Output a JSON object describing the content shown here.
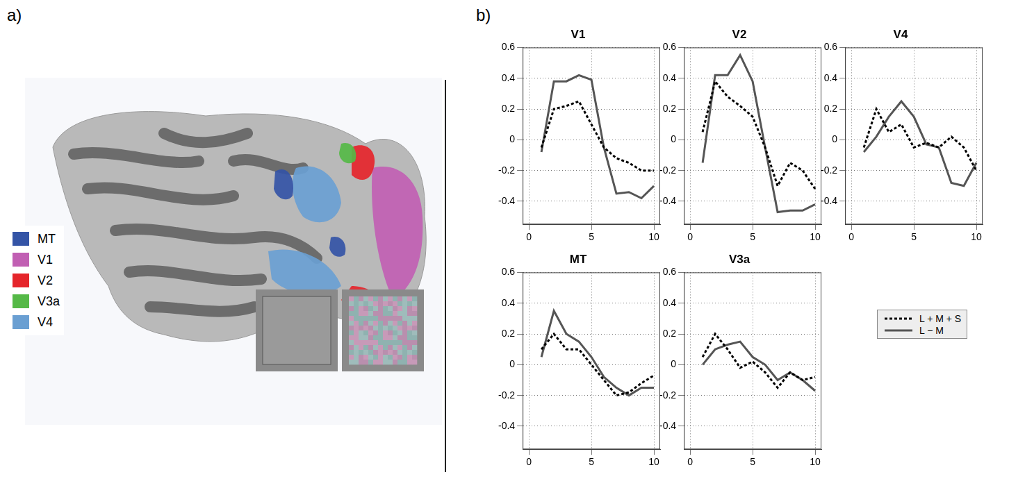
{
  "panel_a": {
    "label": "a)",
    "regions": [
      {
        "name": "MT",
        "color": "#3454a6"
      },
      {
        "name": "V1",
        "color": "#c15fb3"
      },
      {
        "name": "V2",
        "color": "#e5252b"
      },
      {
        "name": "V3a",
        "color": "#55b947"
      },
      {
        "name": "V4",
        "color": "#6a9fd2"
      }
    ]
  },
  "panel_b": {
    "label": "b)"
  },
  "chart_data": [
    {
      "type": "line",
      "title": "V1",
      "x": [
        1,
        2,
        3,
        4,
        5,
        6,
        7,
        8,
        9,
        10
      ],
      "xlim": [
        -0.5,
        10.5
      ],
      "xticks": [
        0,
        5,
        10
      ],
      "ylim": [
        -0.55,
        0.6
      ],
      "yticks": [
        -0.4,
        -0.2,
        0,
        0.2,
        0.4,
        0.6
      ],
      "grid": true,
      "series": [
        {
          "name": "L + M + S",
          "color": "#000000",
          "line_style": "dotted",
          "values": [
            -0.05,
            0.2,
            0.22,
            0.25,
            0.1,
            -0.05,
            -0.12,
            -0.15,
            -0.2,
            -0.2
          ]
        },
        {
          "name": "L − M",
          "color": "#555555",
          "line_style": "solid",
          "values": [
            -0.08,
            0.38,
            0.38,
            0.42,
            0.39,
            -0.05,
            -0.35,
            -0.34,
            -0.38,
            -0.3
          ]
        }
      ]
    },
    {
      "type": "line",
      "title": "V2",
      "x": [
        1,
        2,
        3,
        4,
        5,
        6,
        7,
        8,
        9,
        10
      ],
      "xlim": [
        -0.5,
        10.5
      ],
      "xticks": [
        0,
        5,
        10
      ],
      "ylim": [
        -0.55,
        0.6
      ],
      "yticks": [
        -0.4,
        -0.2,
        0,
        0.2,
        0.4,
        0.6
      ],
      "grid": true,
      "series": [
        {
          "name": "L + M + S",
          "color": "#000000",
          "line_style": "dotted",
          "values": [
            0.05,
            0.38,
            0.28,
            0.22,
            0.15,
            -0.05,
            -0.3,
            -0.15,
            -0.2,
            -0.32
          ]
        },
        {
          "name": "L − M",
          "color": "#555555",
          "line_style": "solid",
          "values": [
            -0.15,
            0.42,
            0.42,
            0.55,
            0.38,
            -0.05,
            -0.47,
            -0.46,
            -0.46,
            -0.42
          ]
        }
      ]
    },
    {
      "type": "line",
      "title": "V4",
      "x": [
        1,
        2,
        3,
        4,
        5,
        6,
        7,
        8,
        9,
        10
      ],
      "xlim": [
        -0.5,
        10.5
      ],
      "xticks": [
        0,
        5,
        10
      ],
      "ylim": [
        -0.55,
        0.6
      ],
      "yticks": [
        -0.4,
        -0.2,
        0,
        0.2,
        0.4,
        0.6
      ],
      "grid": true,
      "series": [
        {
          "name": "L + M + S",
          "color": "#000000",
          "line_style": "dotted",
          "values": [
            -0.05,
            0.2,
            0.05,
            0.1,
            -0.05,
            -0.02,
            -0.05,
            0.02,
            -0.05,
            -0.2
          ]
        },
        {
          "name": "L − M",
          "color": "#555555",
          "line_style": "solid",
          "values": [
            -0.08,
            0.02,
            0.15,
            0.25,
            0.15,
            -0.03,
            -0.05,
            -0.28,
            -0.3,
            -0.15
          ]
        }
      ]
    },
    {
      "type": "line",
      "title": "MT",
      "x": [
        1,
        2,
        3,
        4,
        5,
        6,
        7,
        8,
        9,
        10
      ],
      "xlim": [
        -0.5,
        10.5
      ],
      "xticks": [
        0,
        5,
        10
      ],
      "ylim": [
        -0.55,
        0.6
      ],
      "yticks": [
        -0.4,
        -0.2,
        0,
        0.2,
        0.4,
        0.6
      ],
      "grid": true,
      "series": [
        {
          "name": "L + M + S",
          "color": "#000000",
          "line_style": "dotted",
          "values": [
            0.1,
            0.2,
            0.1,
            0.1,
            0.0,
            -0.1,
            -0.2,
            -0.18,
            -0.12,
            -0.07
          ]
        },
        {
          "name": "L − M",
          "color": "#555555",
          "line_style": "solid",
          "values": [
            0.05,
            0.35,
            0.2,
            0.15,
            0.05,
            -0.08,
            -0.15,
            -0.2,
            -0.15,
            -0.15
          ]
        }
      ]
    },
    {
      "type": "line",
      "title": "V3a",
      "x": [
        1,
        2,
        3,
        4,
        5,
        6,
        7,
        8,
        9,
        10
      ],
      "xlim": [
        -0.5,
        10.5
      ],
      "xticks": [
        0,
        5,
        10
      ],
      "ylim": [
        -0.55,
        0.6
      ],
      "yticks": [
        -0.4,
        -0.2,
        0,
        0.2,
        0.4,
        0.6
      ],
      "grid": true,
      "series": [
        {
          "name": "L + M + S",
          "color": "#000000",
          "line_style": "dotted",
          "values": [
            0.05,
            0.2,
            0.1,
            -0.02,
            0.02,
            -0.05,
            -0.15,
            -0.05,
            -0.1,
            -0.08
          ]
        },
        {
          "name": "L − M",
          "color": "#555555",
          "line_style": "solid",
          "values": [
            0.0,
            0.1,
            0.13,
            0.15,
            0.05,
            0.0,
            -0.1,
            -0.05,
            -0.1,
            -0.17
          ]
        }
      ]
    }
  ]
}
